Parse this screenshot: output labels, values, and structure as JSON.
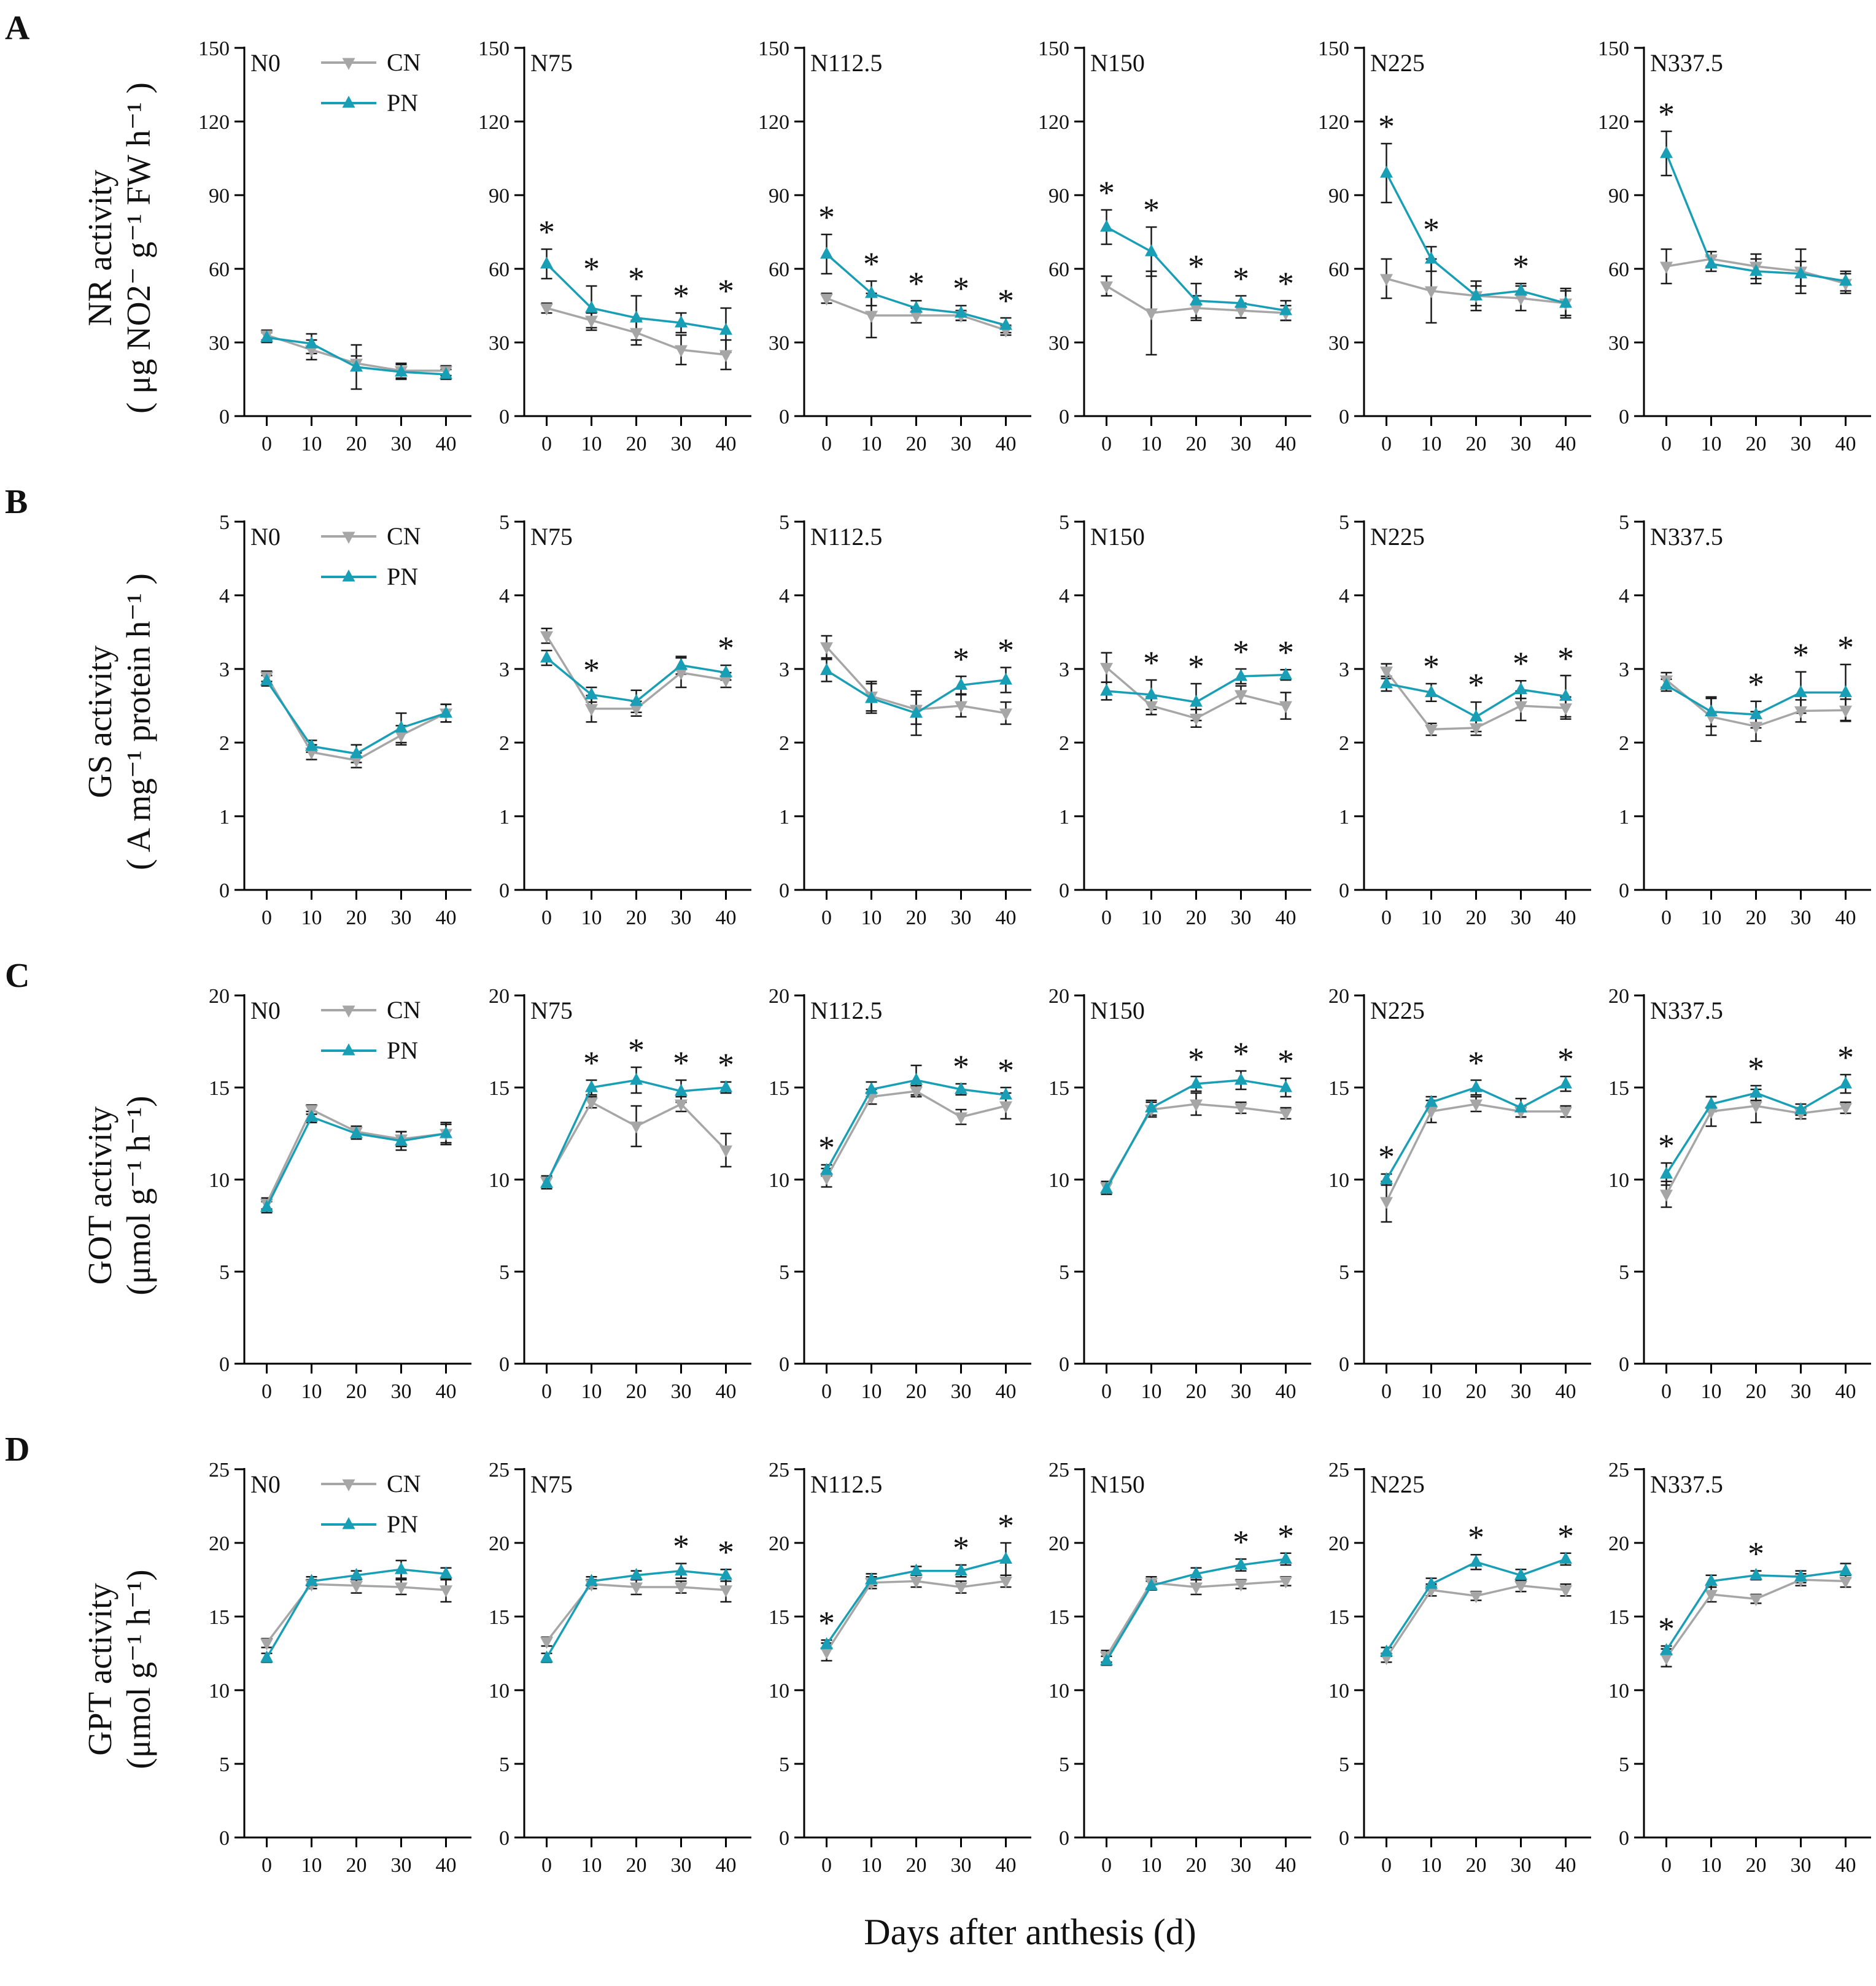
{
  "figure": {
    "xlabel": "Days after anthesis (d)",
    "x_ticks": [
      0,
      10,
      20,
      30,
      40
    ],
    "star": "*",
    "legend": {
      "cn": "CN",
      "pn": "PN"
    },
    "colors": {
      "cn": "#A6A6A6",
      "pn": "#189EB5",
      "error": "#1a1a1a",
      "axis": "#000000"
    }
  },
  "chart_data": [
    {
      "row": "A",
      "type": "line",
      "ylabel_line1": "NR activity",
      "ylabel_line2": "( μg NO2⁻ g⁻¹ FW h⁻¹ )",
      "x": [
        0,
        10,
        20,
        30,
        40
      ],
      "ylim": [
        0,
        150
      ],
      "yticks": [
        0,
        30,
        60,
        90,
        120,
        150
      ],
      "panels": [
        {
          "name": "N0",
          "cn": [
            33,
            27,
            21.5,
            18.5,
            18.5
          ],
          "cn_err": [
            2,
            4,
            3,
            3,
            2
          ],
          "pn": [
            32,
            29.5,
            20,
            18,
            17
          ],
          "pn_err": [
            2,
            4,
            9,
            3,
            2
          ],
          "stars": []
        },
        {
          "name": "N75",
          "cn": [
            44,
            39,
            34,
            27,
            25
          ],
          "cn_err": [
            2,
            3,
            5,
            6,
            6
          ],
          "pn": [
            62,
            44,
            40,
            38,
            35
          ],
          "pn_err": [
            6,
            9,
            9,
            4,
            9
          ],
          "stars": [
            0,
            10,
            20,
            30,
            40
          ]
        },
        {
          "name": "N112.5",
          "cn": [
            48,
            41,
            41,
            41,
            35
          ],
          "cn_err": [
            2,
            9,
            3,
            2,
            2
          ],
          "pn": [
            66,
            50,
            44,
            42,
            37
          ],
          "pn_err": [
            8,
            5,
            3,
            3,
            3
          ],
          "stars": [
            0,
            10,
            20,
            30,
            40
          ]
        },
        {
          "name": "N150",
          "cn": [
            53,
            42,
            44,
            43,
            42
          ],
          "cn_err": [
            4,
            17,
            5,
            3,
            3
          ],
          "pn": [
            77,
            67,
            47,
            46,
            43
          ],
          "pn_err": [
            7,
            10,
            7,
            3,
            4
          ],
          "stars": [
            0,
            10,
            20,
            30,
            40
          ]
        },
        {
          "name": "N225",
          "cn": [
            56,
            51,
            49,
            48,
            46
          ],
          "cn_err": [
            8,
            13,
            6,
            5,
            6
          ],
          "pn": [
            99,
            64,
            49,
            51,
            46
          ],
          "pn_err": [
            12,
            5,
            4,
            3,
            5
          ],
          "stars": [
            0,
            10,
            30
          ]
        },
        {
          "name": "N337.5",
          "cn": [
            61,
            64,
            61,
            59,
            54
          ],
          "cn_err": [
            7,
            3,
            5,
            9,
            4
          ],
          "pn": [
            107,
            62,
            59,
            58,
            55
          ],
          "pn_err": [
            9,
            3,
            5,
            5,
            4
          ],
          "stars": [
            0
          ]
        }
      ]
    },
    {
      "row": "B",
      "type": "line",
      "ylabel_line1": "GS activity",
      "ylabel_line2": "( A mg⁻¹ protein h⁻¹ )",
      "x": [
        0,
        10,
        20,
        30,
        40
      ],
      "ylim": [
        0,
        5
      ],
      "yticks": [
        0,
        1,
        2,
        3,
        4,
        5
      ],
      "panels": [
        {
          "name": "N0",
          "cn": [
            2.9,
            1.87,
            1.76,
            2.1,
            2.4
          ],
          "cn_err": [
            0.07,
            0.1,
            0.1,
            0.13,
            0.12
          ],
          "pn": [
            2.84,
            1.95,
            1.85,
            2.2,
            2.4
          ],
          "pn_err": [
            0.07,
            0.08,
            0.12,
            0.2,
            0.12
          ],
          "stars": []
        },
        {
          "name": "N75",
          "cn": [
            3.45,
            2.46,
            2.46,
            2.95,
            2.85
          ],
          "cn_err": [
            0.1,
            0.18,
            0.1,
            0.2,
            0.1
          ],
          "pn": [
            3.15,
            2.65,
            2.56,
            3.05,
            2.95
          ],
          "pn_err": [
            0.1,
            0.1,
            0.15,
            0.12,
            0.1
          ],
          "stars": [
            10,
            40
          ]
        },
        {
          "name": "N112.5",
          "cn": [
            3.3,
            2.63,
            2.45,
            2.5,
            2.4
          ],
          "cn_err": [
            0.15,
            0.2,
            0.2,
            0.15,
            0.15
          ],
          "pn": [
            2.98,
            2.6,
            2.4,
            2.78,
            2.85
          ],
          "pn_err": [
            0.15,
            0.2,
            0.3,
            0.12,
            0.17
          ],
          "stars": [
            30,
            40
          ]
        },
        {
          "name": "N150",
          "cn": [
            3.02,
            2.5,
            2.33,
            2.65,
            2.5
          ],
          "cn_err": [
            0.2,
            0.12,
            0.12,
            0.12,
            0.18
          ],
          "pn": [
            2.7,
            2.65,
            2.55,
            2.9,
            2.92
          ],
          "pn_err": [
            0.12,
            0.2,
            0.25,
            0.1,
            0.07
          ],
          "stars": [
            10,
            20,
            30,
            40
          ]
        },
        {
          "name": "N225",
          "cn": [
            2.97,
            2.18,
            2.2,
            2.5,
            2.47
          ],
          "cn_err": [
            0.1,
            0.08,
            0.1,
            0.2,
            0.15
          ],
          "pn": [
            2.8,
            2.68,
            2.35,
            2.72,
            2.63
          ],
          "pn_err": [
            0.1,
            0.12,
            0.2,
            0.12,
            0.28
          ],
          "stars": [
            10,
            20,
            30,
            40
          ]
        },
        {
          "name": "N337.5",
          "cn": [
            2.85,
            2.35,
            2.22,
            2.43,
            2.44
          ],
          "cn_err": [
            0.1,
            0.25,
            0.2,
            0.15,
            0.15
          ],
          "pn": [
            2.78,
            2.42,
            2.38,
            2.68,
            2.68
          ],
          "pn_err": [
            0.08,
            0.2,
            0.18,
            0.28,
            0.38
          ],
          "stars": [
            20,
            30,
            40
          ]
        }
      ]
    },
    {
      "row": "C",
      "type": "line",
      "ylabel_line1": "GOT activity",
      "ylabel_line2": "(μmol g⁻¹ h⁻¹)",
      "x": [
        0,
        10,
        20,
        30,
        40
      ],
      "ylim": [
        0,
        20
      ],
      "yticks": [
        0,
        5,
        10,
        15,
        20
      ],
      "panels": [
        {
          "name": "N0",
          "cn": [
            8.7,
            13.8,
            12.6,
            12.2,
            12.5
          ],
          "cn_err": [
            0.3,
            0.25,
            0.3,
            0.4,
            0.5
          ],
          "pn": [
            8.5,
            13.4,
            12.5,
            12.1,
            12.5
          ],
          "pn_err": [
            0.3,
            0.3,
            0.3,
            0.5,
            0.6
          ],
          "stars": []
        },
        {
          "name": "N75",
          "cn": [
            9.9,
            14.2,
            12.9,
            14.1,
            11.6
          ],
          "cn_err": [
            0.3,
            0.3,
            1.1,
            0.4,
            0.9
          ],
          "pn": [
            9.8,
            15.0,
            15.4,
            14.8,
            15.0
          ],
          "pn_err": [
            0.3,
            0.4,
            0.7,
            0.6,
            0.3
          ],
          "stars": [
            10,
            20,
            30,
            40
          ]
        },
        {
          "name": "N112.5",
          "cn": [
            10.1,
            14.5,
            14.8,
            13.4,
            14.0
          ],
          "cn_err": [
            0.5,
            0.4,
            0.3,
            0.4,
            0.7
          ],
          "pn": [
            10.5,
            14.9,
            15.4,
            14.9,
            14.6
          ],
          "pn_err": [
            0.3,
            0.4,
            0.8,
            0.3,
            0.4
          ],
          "stars": [
            0,
            30,
            40
          ]
        },
        {
          "name": "N150",
          "cn": [
            9.6,
            13.8,
            14.1,
            13.9,
            13.6
          ],
          "cn_err": [
            0.3,
            0.4,
            0.6,
            0.3,
            0.3
          ],
          "pn": [
            9.5,
            13.9,
            15.2,
            15.4,
            15.0
          ],
          "pn_err": [
            0.3,
            0.4,
            0.4,
            0.5,
            0.5
          ],
          "stars": [
            20,
            30,
            40
          ]
        },
        {
          "name": "N225",
          "cn": [
            8.8,
            13.7,
            14.1,
            13.7,
            13.7
          ],
          "cn_err": [
            1.1,
            0.6,
            0.4,
            0.3,
            0.3
          ],
          "pn": [
            10.0,
            14.2,
            15.0,
            13.9,
            15.2
          ],
          "pn_err": [
            0.3,
            0.3,
            0.4,
            0.5,
            0.4
          ],
          "stars": [
            0,
            20,
            40
          ]
        },
        {
          "name": "N337.5",
          "cn": [
            9.2,
            13.7,
            14.0,
            13.6,
            13.9
          ],
          "cn_err": [
            0.7,
            0.8,
            0.9,
            0.3,
            0.3
          ],
          "pn": [
            10.3,
            14.1,
            14.7,
            13.8,
            15.2
          ],
          "pn_err": [
            0.6,
            0.4,
            0.4,
            0.3,
            0.5
          ],
          "stars": [
            0,
            20,
            40
          ]
        }
      ]
    },
    {
      "row": "D",
      "type": "line",
      "ylabel_line1": "GPT activity",
      "ylabel_line2": "(μmol g⁻¹ h⁻¹)",
      "x": [
        0,
        10,
        20,
        30,
        40
      ],
      "ylim": [
        0,
        25
      ],
      "yticks": [
        0,
        5,
        10,
        15,
        20,
        25
      ],
      "panels": [
        {
          "name": "N0",
          "cn": [
            13.2,
            17.2,
            17.1,
            17.0,
            16.8
          ],
          "cn_err": [
            0.3,
            0.3,
            0.5,
            0.5,
            0.8
          ],
          "pn": [
            12.2,
            17.4,
            17.8,
            18.2,
            17.9
          ],
          "pn_err": [
            0.3,
            0.3,
            0.3,
            0.6,
            0.4
          ],
          "stars": []
        },
        {
          "name": "N75",
          "cn": [
            13.3,
            17.2,
            17.0,
            17.0,
            16.8
          ],
          "cn_err": [
            0.3,
            0.3,
            0.5,
            0.4,
            0.8
          ],
          "pn": [
            12.2,
            17.4,
            17.8,
            18.1,
            17.8
          ],
          "pn_err": [
            0.3,
            0.3,
            0.3,
            0.5,
            0.4
          ],
          "stars": [
            30,
            40
          ]
        },
        {
          "name": "N112.5",
          "cn": [
            12.6,
            17.3,
            17.4,
            17.0,
            17.4
          ],
          "cn_err": [
            0.6,
            0.4,
            0.4,
            0.4,
            0.4
          ],
          "pn": [
            13.1,
            17.5,
            18.1,
            18.1,
            18.9
          ],
          "pn_err": [
            0.3,
            0.4,
            0.3,
            0.4,
            1.1
          ],
          "stars": [
            0,
            30,
            40
          ]
        },
        {
          "name": "N150",
          "cn": [
            12.3,
            17.3,
            17.0,
            17.2,
            17.4
          ],
          "cn_err": [
            0.4,
            0.4,
            0.5,
            0.3,
            0.3
          ],
          "pn": [
            12.0,
            17.1,
            17.9,
            18.5,
            18.9
          ],
          "pn_err": [
            0.3,
            0.3,
            0.4,
            0.4,
            0.4
          ],
          "stars": [
            30,
            40
          ]
        },
        {
          "name": "N225",
          "cn": [
            12.2,
            16.8,
            16.4,
            17.1,
            16.8
          ],
          "cn_err": [
            0.3,
            0.4,
            0.3,
            0.4,
            0.4
          ],
          "pn": [
            12.6,
            17.2,
            18.7,
            17.8,
            18.9
          ],
          "pn_err": [
            0.3,
            0.4,
            0.5,
            0.4,
            0.4
          ],
          "stars": [
            20,
            40
          ]
        },
        {
          "name": "N337.5",
          "cn": [
            12.2,
            16.5,
            16.2,
            17.5,
            17.4
          ],
          "cn_err": [
            0.6,
            0.5,
            0.3,
            0.4,
            0.4
          ],
          "pn": [
            12.7,
            17.4,
            17.8,
            17.7,
            18.1
          ],
          "pn_err": [
            0.3,
            0.4,
            0.3,
            0.4,
            0.5
          ],
          "stars": [
            0,
            20
          ]
        }
      ]
    }
  ]
}
